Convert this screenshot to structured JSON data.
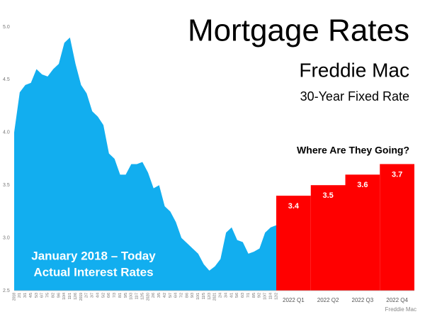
{
  "chart_data": [
    {
      "type": "area",
      "title": "Mortgage Rates",
      "subtitle": "Freddie Mac",
      "caption": "30-Year Fixed Rate",
      "annotation": [
        "January 2018 – Today",
        "Actual Interest Rates"
      ],
      "source": "Freddie Mac",
      "color": "#12aeef",
      "categories": [
        "2018",
        "2/1",
        "3/1",
        "4/5",
        "5/3",
        "6/7",
        "7/5",
        "8/2",
        "9/6",
        "10/4",
        "11/1",
        "12/6",
        "2019",
        "2/7",
        "3/7",
        "4/4",
        "5/2",
        "6/6",
        "7/3",
        "8/1",
        "9/5",
        "10/3",
        "11/7",
        "12/5",
        "2020",
        "2/6",
        "3/5",
        "4/2",
        "5/7",
        "6/4",
        "7/2",
        "8/6",
        "9/3",
        "10/1",
        "11/5",
        "12/3",
        "2021",
        "2/4",
        "3/4",
        "4/1",
        "5/6",
        "6/3",
        "7/1",
        "8/5",
        "9/2",
        "10/7",
        "11/4",
        "12/2"
      ],
      "values": [
        4.0,
        4.38,
        4.45,
        4.47,
        4.6,
        4.55,
        4.53,
        4.6,
        4.65,
        4.85,
        4.9,
        4.65,
        4.45,
        4.37,
        4.2,
        4.15,
        4.07,
        3.8,
        3.75,
        3.6,
        3.6,
        3.7,
        3.7,
        3.72,
        3.62,
        3.47,
        3.5,
        3.3,
        3.25,
        3.15,
        3.0,
        2.95,
        2.9,
        2.85,
        2.75,
        2.69,
        2.73,
        2.8,
        3.05,
        3.1,
        2.98,
        2.96,
        2.85,
        2.87,
        2.9,
        3.05,
        3.1,
        3.12
      ],
      "ylim": [
        2.5,
        5.0
      ],
      "yticks": [
        2.5,
        {
          "value": 3,
          "label": "3.0"
        },
        3.5,
        {
          "value": 4,
          "label": "4.0"
        },
        4.5,
        {
          "value": 5,
          "label": "5.0"
        }
      ],
      "grid": false
    },
    {
      "type": "bar",
      "title": "Where Are They Going?",
      "color": "#ff0000",
      "categories": [
        "2022 Q1",
        "2022 Q2",
        "2022 Q3",
        "2022 Q4"
      ],
      "values": [
        3.4,
        3.5,
        3.6,
        3.7
      ],
      "ylim": [
        2.5,
        5.0
      ]
    }
  ]
}
